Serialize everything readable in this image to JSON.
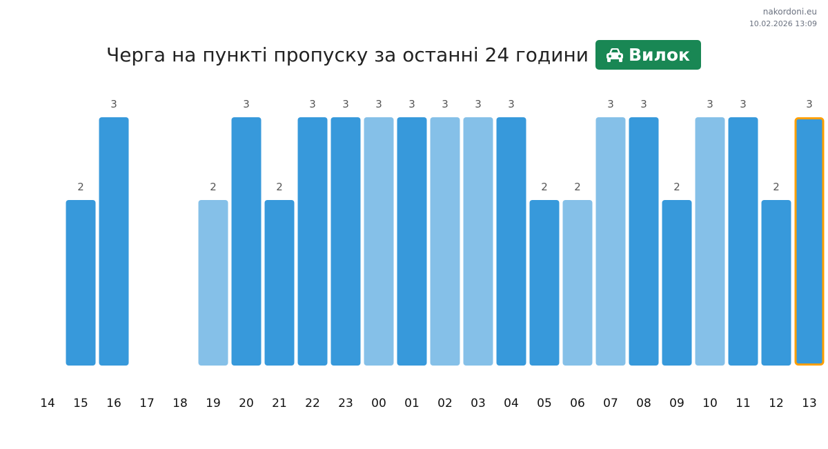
{
  "brand": {
    "site": "nakordoni.eu",
    "timestamp": "10.02.2026 13:09"
  },
  "header": {
    "title": "Черга на пункті пропуску за останні 24 години",
    "checkpoint": "Вилок",
    "checkpoint_icon": "car-icon",
    "badge_color": "#198754"
  },
  "chart_data": {
    "type": "bar",
    "title": "Черга на пункті пропуску за останні 24 години",
    "categories": [
      "14",
      "15",
      "16",
      "17",
      "18",
      "19",
      "20",
      "21",
      "22",
      "23",
      "00",
      "01",
      "02",
      "03",
      "04",
      "05",
      "06",
      "07",
      "08",
      "09",
      "10",
      "11",
      "12",
      "13"
    ],
    "values": [
      0,
      2,
      3,
      0,
      0,
      2,
      3,
      2,
      3,
      3,
      3,
      3,
      3,
      3,
      3,
      2,
      2,
      3,
      3,
      2,
      3,
      3,
      2,
      3
    ],
    "shade": [
      "dark",
      "dark",
      "dark",
      "dark",
      "dark",
      "light",
      "dark",
      "dark",
      "dark",
      "dark",
      "light",
      "dark",
      "light",
      "light",
      "dark",
      "dark",
      "light",
      "light",
      "dark",
      "dark",
      "light",
      "dark",
      "dark",
      "dark"
    ],
    "highlighted": "13",
    "colors": {
      "dark": "#3799db",
      "light": "#85c0e8",
      "highlight_border": "#ff9f00"
    },
    "ylim": [
      0,
      3
    ],
    "grid": false,
    "data_labels": true
  }
}
